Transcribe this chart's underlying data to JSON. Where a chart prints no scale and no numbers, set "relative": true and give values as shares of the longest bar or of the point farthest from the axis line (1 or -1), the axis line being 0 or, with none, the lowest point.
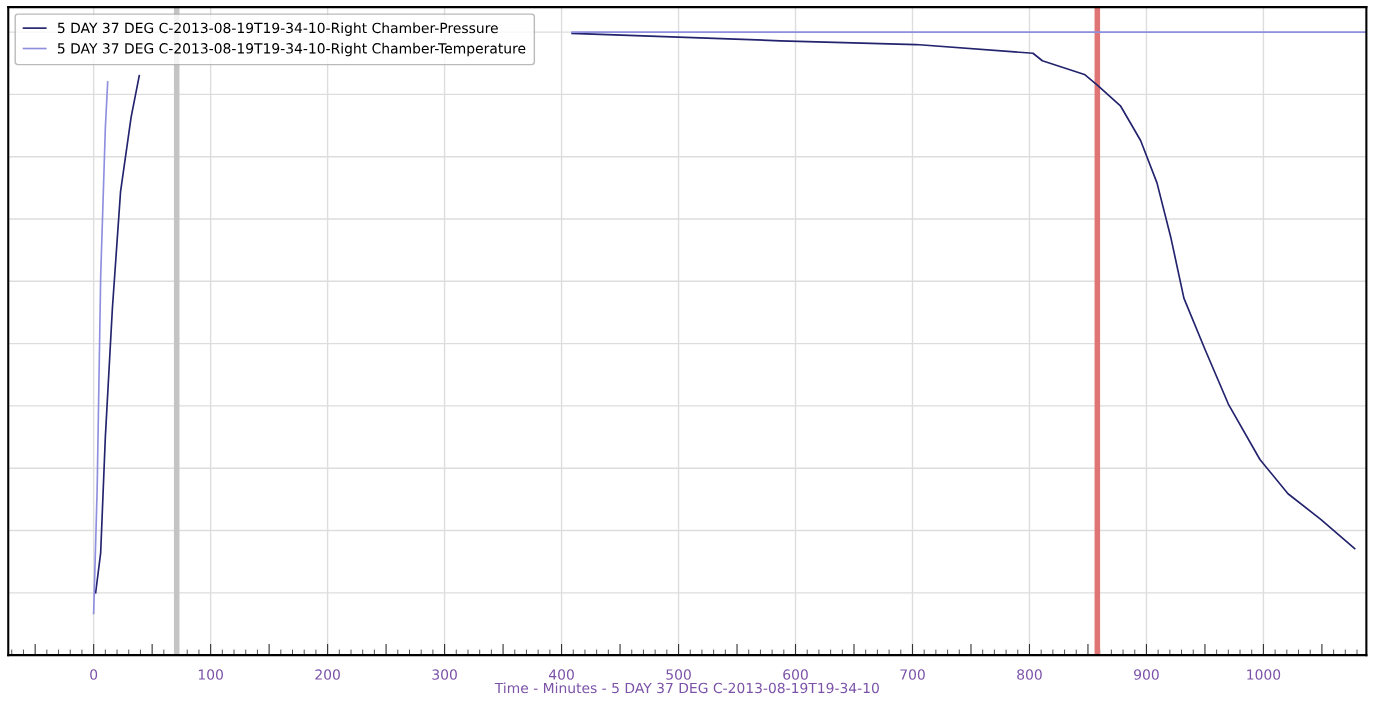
{
  "chart_data": {
    "type": "line",
    "relative": true,
    "xlabel": "Time - Minutes - 5 DAY 37 DEG C-2013-08-19T19-34-10",
    "xlim": [
      -73,
      1088
    ],
    "xticks": [
      {
        "value": -50,
        "label": null
      },
      0,
      {
        "value": 50,
        "label": null
      },
      100,
      {
        "value": 150,
        "label": null
      },
      200,
      {
        "value": 250,
        "label": null
      },
      300,
      {
        "value": 350,
        "label": null
      },
      400,
      {
        "value": 450,
        "label": null
      },
      500,
      {
        "value": 550,
        "label": null
      },
      600,
      {
        "value": 650,
        "label": null
      },
      700,
      {
        "value": 750,
        "label": null
      },
      800,
      {
        "value": 850,
        "label": null
      },
      900,
      {
        "value": 950,
        "label": null
      },
      1000,
      {
        "value": 1050,
        "label": null
      }
    ],
    "grid": true,
    "legend": "top left",
    "marker": "none",
    "line_style": "solid",
    "series": [
      {
        "name": "5 DAY 37 DEG C-2013-08-19T19-34-10-Right Chamber-Pressure",
        "color": "#23236e",
        "x": [
          1.7,
          6,
          10,
          16,
          23,
          32,
          39,
          200,
          409,
          500,
          587,
          703,
          803,
          811,
          847,
          858,
          878,
          895,
          909,
          921,
          932,
          950,
          970,
          997,
          1021,
          1049,
          1078
        ],
        "values": [
          0.1,
          0.164,
          0.35,
          0.556,
          0.744,
          0.863,
          0.93,
          null,
          0.998,
          0.992,
          0.986,
          0.98,
          0.966,
          0.954,
          0.932,
          0.915,
          0.881,
          0.826,
          0.758,
          0.669,
          0.573,
          0.491,
          0.403,
          0.314,
          0.259,
          0.218,
          0.171
        ]
      },
      {
        "name": "5 DAY 37 DEG C-2013-08-19T19-34-10-Right Chamber-Temperature",
        "color": "#8f8fe0",
        "x": [
          0,
          3,
          6,
          10,
          12,
          200,
          409,
          600,
          800,
          1000,
          1088
        ],
        "values": [
          0.067,
          0.266,
          0.607,
          0.846,
          0.92,
          null,
          1.0,
          1.0,
          1.0,
          1.0,
          1.0
        ]
      }
    ],
    "ref_lines": [
      {
        "axis": "x",
        "value": 71,
        "color": "#c4c4c4"
      },
      {
        "axis": "x",
        "value": 858,
        "color": "#e07575"
      }
    ]
  }
}
